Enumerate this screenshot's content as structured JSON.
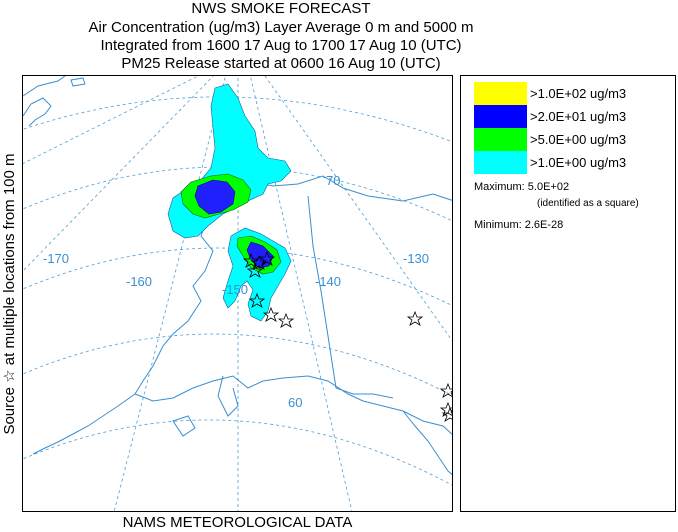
{
  "header": {
    "line1": "NWS SMOKE FORECAST",
    "line2": "Air Concentration (ug/m3) Layer Average     0 m and  5000 m",
    "line3": "Integrated from 1600 17 Aug to 1700 17 Aug 10 (UTC)",
    "line4": "PM25 Release started at 0600 16 Aug 10 (UTC)"
  },
  "side_label": "Source ☆ at multiple locations   from   100 m",
  "footer": "NAMS METEOROLOGICAL DATA",
  "map": {
    "longitude_labels": [
      "-170",
      "-160",
      "-150",
      "-140",
      "-130"
    ],
    "latitude_labels": [
      "70",
      "60"
    ]
  },
  "legend": {
    "items": [
      {
        "label": ">1.0E+02 ug/m3",
        "color": "#ffff00"
      },
      {
        "label": ">2.0E+01 ug/m3",
        "color": "#0000ff"
      },
      {
        "label": ">5.0E+00 ug/m3",
        "color": "#00ff00"
      },
      {
        "label": ">1.0E+00 ug/m3",
        "color": "#00ffff"
      }
    ],
    "maximum": "Maximum: 5.0E+02",
    "maximum_note": "(identified as a square)",
    "minimum": "Minimum: 2.6E-28"
  },
  "colors": {
    "coast": "#3a8fd0",
    "grid": "#4a9fd8",
    "label": "#3a8fd0"
  },
  "chart_data": {
    "type": "heatmap",
    "title": "NWS SMOKE FORECAST",
    "subtitle": "Air Concentration (ug/m3) Layer Average 0 m and 5000 m",
    "levels": [
      ">1.0E+02 ug/m3",
      ">2.0E+01 ug/m3",
      ">5.0E+00 ug/m3",
      ">1.0E+00 ug/m3"
    ],
    "maximum": 500,
    "minimum": 2.6e-28
  }
}
